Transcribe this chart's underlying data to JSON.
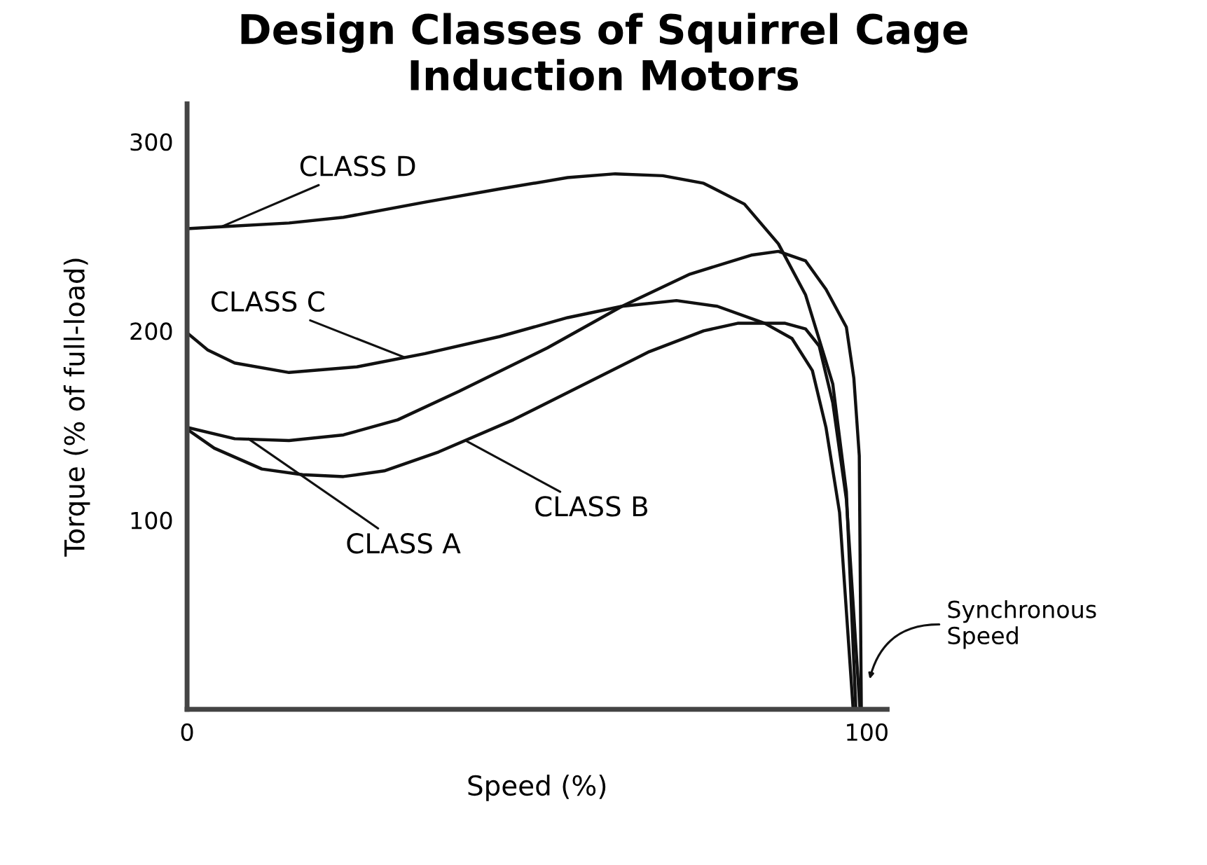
{
  "chart_data": {
    "type": "line",
    "title": "Design Classes of Squirrel Cage\nInduction Motors",
    "xlabel": "Speed (%)",
    "ylabel": "Torque (% of full-load)",
    "xlim": [
      0,
      103
    ],
    "xticks": [
      0,
      100
    ],
    "ylim": [
      0,
      320
    ],
    "yticks": [
      100,
      200,
      300
    ],
    "grid": false,
    "legend": false,
    "marker": "none",
    "line_style": "solid",
    "series": [
      {
        "color": "#111111",
        "x": [
          0,
          5,
          15,
          23,
          35,
          46,
          56,
          63,
          70,
          76,
          82,
          87,
          91,
          95,
          97,
          98.4
        ],
        "values": [
          254,
          255,
          257,
          260,
          268,
          275,
          281,
          283,
          282,
          278,
          267,
          246,
          219,
          172,
          115,
          0
        ]
      },
      {
        "color": "#111111",
        "x": [
          0,
          3,
          7,
          15,
          25,
          35,
          46,
          56,
          64,
          72,
          78,
          85,
          89,
          92,
          94,
          96,
          98
        ],
        "values": [
          199,
          190,
          183,
          178,
          181,
          188,
          197,
          207,
          213,
          216,
          213,
          204,
          196,
          179,
          149,
          104,
          0
        ]
      },
      {
        "color": "#111111",
        "x": [
          0,
          7,
          15,
          23,
          31,
          40,
          53,
          64,
          74,
          83,
          87,
          91,
          94,
          97,
          98.1,
          98.9,
          99.2
        ],
        "values": [
          149,
          143,
          142,
          145,
          153,
          168,
          191,
          213,
          230,
          240,
          242,
          237,
          222,
          202,
          175,
          134,
          0
        ]
      },
      {
        "color": "#111111",
        "x": [
          0,
          4,
          11,
          17,
          23,
          29,
          37,
          48,
          58,
          68,
          76,
          81,
          85,
          88,
          91,
          93,
          95,
          97,
          99
        ],
        "values": [
          148,
          138,
          127,
          124,
          123,
          126,
          136,
          153,
          171,
          189,
          200,
          204,
          204,
          204,
          201,
          192,
          162,
          111,
          0
        ]
      }
    ],
    "annotations": [
      {
        "text": "CLASS D",
        "x": 5,
        "y": 255
      },
      {
        "text": "CLASS C",
        "x": 32,
        "y": 186
      },
      {
        "text": "CLASS A",
        "x": 9,
        "y": 143
      },
      {
        "text": "CLASS B",
        "x": 41,
        "y": 142
      },
      "Synchronous\nSpeed"
    ]
  }
}
